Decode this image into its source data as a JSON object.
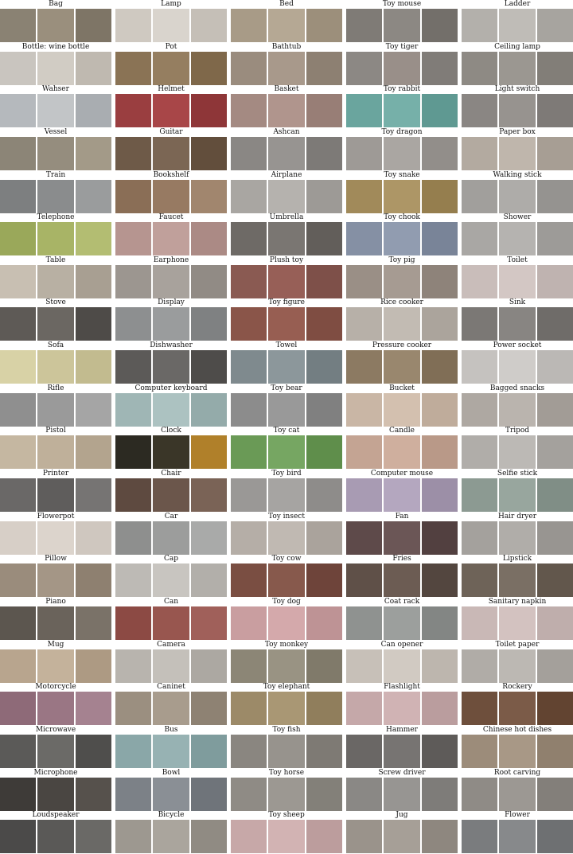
{
  "columns": [
    {
      "items": [
        {
          "label": "Bag",
          "colors": [
            "#8a8273",
            "#9a8f7d",
            "#7e7566"
          ]
        },
        {
          "label": "Bottle: wine bottle",
          "colors": [
            "#c9c5bf",
            "#d1ccc4",
            "#bfb9b0"
          ]
        },
        {
          "label": "Wahser",
          "colors": [
            "#b5b9bd",
            "#c2c5c7",
            "#a9adb1"
          ]
        },
        {
          "label": "Vessel",
          "colors": [
            "#8c8577",
            "#958d7e",
            "#a39a88"
          ]
        },
        {
          "label": "Train",
          "colors": [
            "#7d7f80",
            "#8a8c8d",
            "#9a9c9d"
          ]
        },
        {
          "label": "Telephone",
          "colors": [
            "#9aa85a",
            "#a8b466",
            "#b3bd72"
          ]
        },
        {
          "label": "Table",
          "colors": [
            "#c8bfb2",
            "#b8b0a3",
            "#a89f92"
          ]
        },
        {
          "label": "Stove",
          "colors": [
            "#5e5a56",
            "#6b6762",
            "#4e4b48"
          ]
        },
        {
          "label": "Sofa",
          "colors": [
            "#d8d2a6",
            "#ccc59a",
            "#c2bb8f"
          ]
        },
        {
          "label": "Rifle",
          "colors": [
            "#8f8f8f",
            "#9a9a9a",
            "#a5a5a5"
          ]
        },
        {
          "label": "Pistol",
          "colors": [
            "#c5b7a1",
            "#bfb09a",
            "#b3a48e"
          ]
        },
        {
          "label": "Printer",
          "colors": [
            "#6a6867",
            "#5f5d5c",
            "#767473"
          ]
        },
        {
          "label": "Flowerpot",
          "colors": [
            "#d7cfc7",
            "#dcd4cc",
            "#cfc7bf"
          ]
        },
        {
          "label": "Pillow",
          "colors": [
            "#9a8c7c",
            "#a49686",
            "#8e8070"
          ]
        },
        {
          "label": "Piano",
          "colors": [
            "#5c564f",
            "#6a635b",
            "#7a7268"
          ]
        },
        {
          "label": "Mug",
          "colors": [
            "#b8a58e",
            "#c4b29b",
            "#ad9a83"
          ]
        },
        {
          "label": "Motorcycle",
          "colors": [
            "#8e6a78",
            "#9a7684",
            "#a58290"
          ]
        },
        {
          "label": "Microwave",
          "colors": [
            "#5b5a58",
            "#6b6a67",
            "#4f4e4c"
          ]
        },
        {
          "label": "Microphone",
          "colors": [
            "#3e3b38",
            "#4a4642",
            "#56514c"
          ]
        },
        {
          "label": "Loudspeaker",
          "colors": [
            "#4b4a49",
            "#5a5957",
            "#6a6966"
          ]
        }
      ]
    },
    {
      "items": [
        {
          "label": "Lamp",
          "colors": [
            "#cfc9c1",
            "#d9d4cd",
            "#c5bfb7"
          ]
        },
        {
          "label": "Pot",
          "colors": [
            "#8a7355",
            "#957e60",
            "#7f684a"
          ]
        },
        {
          "label": "Helmet",
          "colors": [
            "#9a3e40",
            "#a84648",
            "#8e3638"
          ]
        },
        {
          "label": "Guitar",
          "colors": [
            "#6e5a48",
            "#7b6654",
            "#624e3c"
          ]
        },
        {
          "label": "Bookshelf",
          "colors": [
            "#8a6e56",
            "#977a62",
            "#a1866e"
          ]
        },
        {
          "label": "Faucet",
          "colors": [
            "#b69590",
            "#c0a09b",
            "#ab8a85"
          ]
        },
        {
          "label": "Earphone",
          "colors": [
            "#9c9690",
            "#a8a29c",
            "#918b85"
          ]
        },
        {
          "label": "Display",
          "colors": [
            "#8d8f90",
            "#9a9c9d",
            "#7f8182"
          ]
        },
        {
          "label": "Dishwasher",
          "colors": [
            "#5c5a58",
            "#6a6866",
            "#4e4c4a"
          ]
        },
        {
          "label": "Computer keyboard",
          "colors": [
            "#9fb6b5",
            "#acc2c1",
            "#94abaa"
          ]
        },
        {
          "label": "Clock",
          "colors": [
            "#2c2a22",
            "#3a3628",
            "#b0802a"
          ]
        },
        {
          "label": "Chair",
          "colors": [
            "#5e4a40",
            "#6b564b",
            "#7a6356"
          ]
        },
        {
          "label": "Car",
          "colors": [
            "#8e8f8e",
            "#9c9d9c",
            "#a9aaa9"
          ]
        },
        {
          "label": "Cap",
          "colors": [
            "#bdbab5",
            "#c8c5c0",
            "#b2afaa"
          ]
        },
        {
          "label": "Can",
          "colors": [
            "#8c4a44",
            "#98564f",
            "#a0605a"
          ]
        },
        {
          "label": "Camera",
          "colors": [
            "#b8b4ae",
            "#c4c0ba",
            "#acA8a2"
          ]
        },
        {
          "label": "Caninet",
          "colors": [
            "#9b8f80",
            "#a89c8d",
            "#8e8273"
          ]
        },
        {
          "label": "Bus",
          "colors": [
            "#8aa7a8",
            "#97b2b3",
            "#7f9c9d"
          ]
        },
        {
          "label": "Bowl",
          "colors": [
            "#7c8187",
            "#8a8f95",
            "#6f747a"
          ]
        },
        {
          "label": "Bicycle",
          "colors": [
            "#9d9890",
            "#aaa59d",
            "#908b83"
          ]
        }
      ]
    },
    {
      "items": [
        {
          "label": "Bed",
          "colors": [
            "#a89b87",
            "#b5a894",
            "#9c8f7b"
          ]
        },
        {
          "label": "Bathtub",
          "colors": [
            "#9a8c7e",
            "#a8998b",
            "#8d8072"
          ]
        },
        {
          "label": "Basket",
          "colors": [
            "#a48a82",
            "#b0958d",
            "#987e76"
          ]
        },
        {
          "label": "Ashcan",
          "colors": [
            "#8a8784",
            "#979491",
            "#7d7a77"
          ]
        },
        {
          "label": "Airplane",
          "colors": [
            "#a9a6a2",
            "#b5b2ae",
            "#9d9a96"
          ]
        },
        {
          "label": "Umbrella",
          "colors": [
            "#6e6a66",
            "#7a7672",
            "#625e5a"
          ]
        },
        {
          "label": "Plush toy",
          "colors": [
            "#8a5a52",
            "#975f57",
            "#7e5049"
          ]
        },
        {
          "label": "Toy figure",
          "colors": [
            "#8a5549",
            "#975e52",
            "#7f4d42"
          ]
        },
        {
          "label": "Towel",
          "colors": [
            "#7f8a8e",
            "#8c979b",
            "#737e82"
          ]
        },
        {
          "label": "Toy bear",
          "colors": [
            "#8c8c8c",
            "#999999",
            "#808080"
          ]
        },
        {
          "label": "Toy cat",
          "colors": [
            "#6a9a56",
            "#76a662",
            "#5f8e4b"
          ]
        },
        {
          "label": "Toy bird",
          "colors": [
            "#9a9896",
            "#a6a4a2",
            "#8e8c8a"
          ]
        },
        {
          "label": "Toy insect",
          "colors": [
            "#b5aea7",
            "#c0b9b2",
            "#aaa39c"
          ]
        },
        {
          "label": "Toy cow",
          "colors": [
            "#7a4e42",
            "#87594c",
            "#6e443a"
          ]
        },
        {
          "label": "Toy dog",
          "colors": [
            "#c99ea0",
            "#d4a9ab",
            "#be9395"
          ]
        },
        {
          "label": "Toy monkey",
          "colors": [
            "#8c8676",
            "#999383",
            "#807a6a"
          ]
        },
        {
          "label": "Toy elephant",
          "colors": [
            "#9c8a68",
            "#a99774",
            "#907e5c"
          ]
        },
        {
          "label": "Toy fish",
          "colors": [
            "#8a8680",
            "#97938d",
            "#7e7a74"
          ]
        },
        {
          "label": "Toy horse",
          "colors": [
            "#8f8b85",
            "#9c9892",
            "#838079"
          ]
        },
        {
          "label": "Toy sheep",
          "colors": [
            "#c7a8a8",
            "#d2b3b3",
            "#bc9d9d"
          ]
        }
      ]
    },
    {
      "items": [
        {
          "label": "Toy mouse",
          "colors": [
            "#7f7b76",
            "#8c8883",
            "#736f6a"
          ]
        },
        {
          "label": "Toy tiger",
          "colors": [
            "#8c8884",
            "#998f89",
            "#807c78"
          ]
        },
        {
          "label": "Toy rabbit",
          "colors": [
            "#6aa59e",
            "#76b0a9",
            "#5f9992"
          ]
        },
        {
          "label": "Toy dragon",
          "colors": [
            "#9e9a96",
            "#aaa6a2",
            "#928e8a"
          ]
        },
        {
          "label": "Toy snake",
          "colors": [
            "#a18a5a",
            "#ad9666",
            "#957e4e"
          ]
        },
        {
          "label": "Toy chook",
          "colors": [
            "#8590a4",
            "#919cb0",
            "#798498"
          ]
        },
        {
          "label": "Toy pig",
          "colors": [
            "#9a8f86",
            "#a69b92",
            "#8e837a"
          ]
        },
        {
          "label": "Rice cooker",
          "colors": [
            "#b7b0a8",
            "#c2bbb3",
            "#aba49c"
          ]
        },
        {
          "label": "Pressure cooker",
          "colors": [
            "#8c7a62",
            "#99876e",
            "#806e56"
          ]
        },
        {
          "label": "Bucket",
          "colors": [
            "#c9b6a5",
            "#d3c0af",
            "#bfac9b"
          ]
        },
        {
          "label": "Candle",
          "colors": [
            "#c4a493",
            "#cfaf9e",
            "#b99988"
          ]
        },
        {
          "label": "Computer mouse",
          "colors": [
            "#a89bb3",
            "#b4a7bf",
            "#9c8fa7"
          ]
        },
        {
          "label": "Fan",
          "colors": [
            "#5e4a4a",
            "#6b5656",
            "#524040"
          ]
        },
        {
          "label": "Fries",
          "colors": [
            "#5f5048",
            "#6c5c53",
            "#53463f"
          ]
        },
        {
          "label": "Coat rack",
          "colors": [
            "#8f9290",
            "#9c9f9d",
            "#838684"
          ]
        },
        {
          "label": "Can opener",
          "colors": [
            "#c7c0b8",
            "#d1cac2",
            "#bdb6ae"
          ]
        },
        {
          "label": "Flashlight",
          "colors": [
            "#c5a8a9",
            "#d0b3b4",
            "#ba9d9e"
          ]
        },
        {
          "label": "Hammer",
          "colors": [
            "#6a6765",
            "#777472",
            "#5e5b59"
          ]
        },
        {
          "label": "Screw driver",
          "colors": [
            "#8a8885",
            "#979592",
            "#7e7c79"
          ]
        },
        {
          "label": "Jug",
          "colors": [
            "#9a938b",
            "#a69f97",
            "#8e877f"
          ]
        }
      ]
    },
    {
      "items": [
        {
          "label": "Ladder",
          "colors": [
            "#b3b0ab",
            "#bfbcb7",
            "#a7a49f"
          ]
        },
        {
          "label": "Ceiling lamp",
          "colors": [
            "#8e8a84",
            "#9b9791",
            "#827e78"
          ]
        },
        {
          "label": "Light switch",
          "colors": [
            "#8a8683",
            "#97938f",
            "#7e7a77"
          ]
        },
        {
          "label": "Paper box",
          "colors": [
            "#b3aaa0",
            "#bfb6ac",
            "#a79e94"
          ]
        },
        {
          "label": "Walking stick",
          "colors": [
            "#a19f9c",
            "#aeaca9",
            "#959390"
          ]
        },
        {
          "label": "Shower",
          "colors": [
            "#a9a7a4",
            "#b5b3b0",
            "#9d9b98"
          ]
        },
        {
          "label": "Toilet",
          "colors": [
            "#c9bdba",
            "#d3c7c4",
            "#bfb3b0"
          ]
        },
        {
          "label": "Sink",
          "colors": [
            "#7b7875",
            "#888582",
            "#6f6c69"
          ]
        },
        {
          "label": "Power socket",
          "colors": [
            "#c5c2bf",
            "#cfccc9",
            "#bbb8b5"
          ]
        },
        {
          "label": "Bagged snacks",
          "colors": [
            "#aea8a2",
            "#bab4ae",
            "#a29c96"
          ]
        },
        {
          "label": "Tripod",
          "colors": [
            "#b0ada9",
            "#bcb9b5",
            "#a4a19d"
          ]
        },
        {
          "label": "Selfie stick",
          "colors": [
            "#8c9a92",
            "#98a69e",
            "#808e86"
          ]
        },
        {
          "label": "Hair dryer",
          "colors": [
            "#a4a19d",
            "#b0ada9",
            "#989591"
          ]
        },
        {
          "label": "Lipstick",
          "colors": [
            "#6e6358",
            "#7a6f64",
            "#62574c"
          ]
        },
        {
          "label": "Sanitary napkin",
          "colors": [
            "#c9b8b6",
            "#d3c2c0",
            "#bfaeac"
          ]
        },
        {
          "label": "Toilet paper",
          "colors": [
            "#b0aca7",
            "#bcb8b3",
            "#a4a09b"
          ]
        },
        {
          "label": "Rockery",
          "colors": [
            "#6e4f3c",
            "#7b5b48",
            "#624431"
          ]
        },
        {
          "label": "Chinese hot dishes",
          "colors": [
            "#9c8c7a",
            "#a89886",
            "#90806e"
          ]
        },
        {
          "label": "Root carving",
          "colors": [
            "#8f8b86",
            "#9c9893",
            "#837f7a"
          ]
        },
        {
          "label": "Flower",
          "colors": [
            "#7a7c7e",
            "#87898b",
            "#6e7072"
          ]
        }
      ]
    }
  ]
}
